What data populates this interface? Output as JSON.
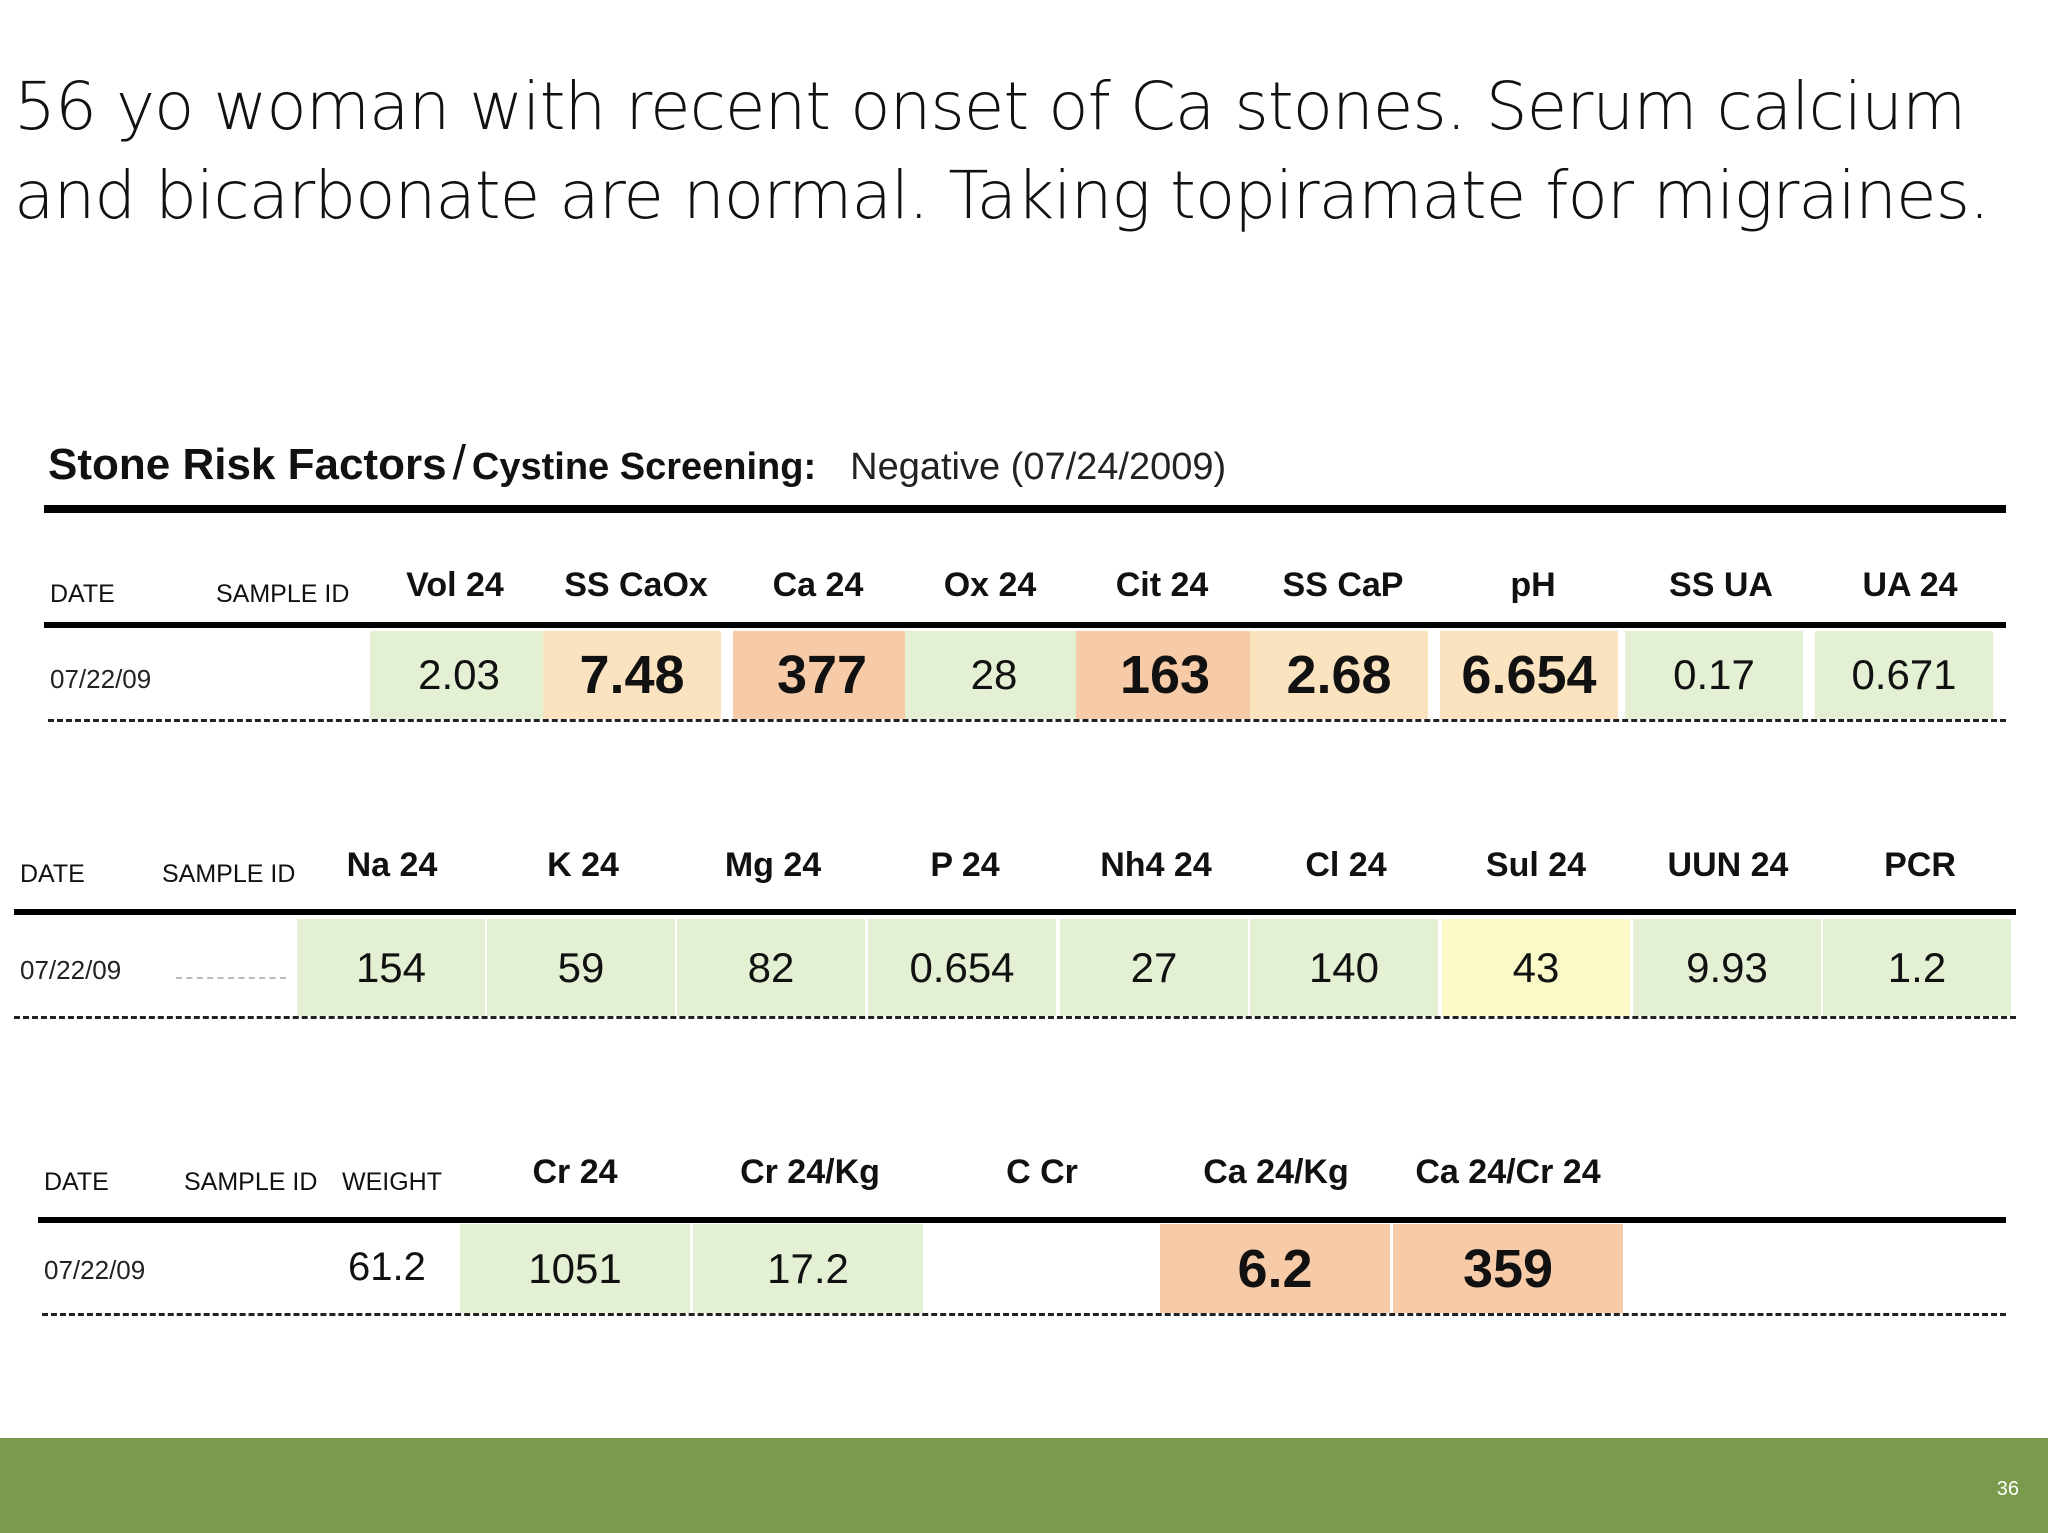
{
  "slide": {
    "title": "56 yo woman with recent onset of Ca stones. Serum calcium and bicarbonate are normal. Taking topiramate for migraines.",
    "page_number": "36"
  },
  "stone_risk": {
    "title_main": "Stone Risk Factors",
    "slash": "/",
    "title_sub": "Cystine Screening:",
    "screening_result": "Negative (07/24/2009)"
  },
  "colors": {
    "green": "#e4f0d3",
    "light_orange": "#fbe3c0",
    "orange": "#f8cba8",
    "yellow": "#fbf9c8",
    "footer": "#7a9a4c"
  },
  "table1": {
    "date_label": "DATE",
    "sample_label": "SAMPLE ID",
    "date": "07/22/09",
    "columns": [
      {
        "label": "Vol 24",
        "value": "2.03",
        "color": "green",
        "strong": false
      },
      {
        "label": "SS CaOx",
        "value": "7.48",
        "color": "light_orange",
        "strong": true
      },
      {
        "label": "Ca 24",
        "value": "377",
        "color": "orange",
        "strong": true
      },
      {
        "label": "Ox 24",
        "value": "28",
        "color": "green",
        "strong": false
      },
      {
        "label": "Cit 24",
        "value": "163",
        "color": "orange",
        "strong": true
      },
      {
        "label": "SS CaP",
        "value": "2.68",
        "color": "light_orange",
        "strong": true
      },
      {
        "label": "pH",
        "value": "6.654",
        "color": "light_orange",
        "strong": true
      },
      {
        "label": "SS UA",
        "value": "0.17",
        "color": "green",
        "strong": false
      },
      {
        "label": "UA 24",
        "value": "0.671",
        "color": "green",
        "strong": false
      }
    ]
  },
  "table2": {
    "date_label": "DATE",
    "sample_label": "SAMPLE ID",
    "date": "07/22/09",
    "columns": [
      {
        "label": "Na 24",
        "value": "154",
        "color": "green"
      },
      {
        "label": "K 24",
        "value": "59",
        "color": "green"
      },
      {
        "label": "Mg 24",
        "value": "82",
        "color": "green"
      },
      {
        "label": "P 24",
        "value": "0.654",
        "color": "green"
      },
      {
        "label": "Nh4 24",
        "value": "27",
        "color": "green"
      },
      {
        "label": "Cl 24",
        "value": "140",
        "color": "green"
      },
      {
        "label": "Sul 24",
        "value": "43",
        "color": "yellow"
      },
      {
        "label": "UUN 24",
        "value": "9.93",
        "color": "green"
      },
      {
        "label": "PCR",
        "value": "1.2",
        "color": "green"
      }
    ]
  },
  "table3": {
    "date_label": "DATE",
    "sample_label": "SAMPLE ID",
    "weight_label": "WEIGHT",
    "date": "07/22/09",
    "weight": "61.2",
    "columns": [
      {
        "label": "Cr 24",
        "value": "1051",
        "color": "green",
        "strong": false
      },
      {
        "label": "Cr 24/Kg",
        "value": "17.2",
        "color": "green",
        "strong": false
      },
      {
        "label": "C Cr",
        "value": "",
        "color": "none",
        "strong": false
      },
      {
        "label": "Ca 24/Kg",
        "value": "6.2",
        "color": "orange",
        "strong": true
      },
      {
        "label": "Ca 24/Cr 24",
        "value": "359",
        "color": "orange",
        "strong": true
      }
    ]
  }
}
